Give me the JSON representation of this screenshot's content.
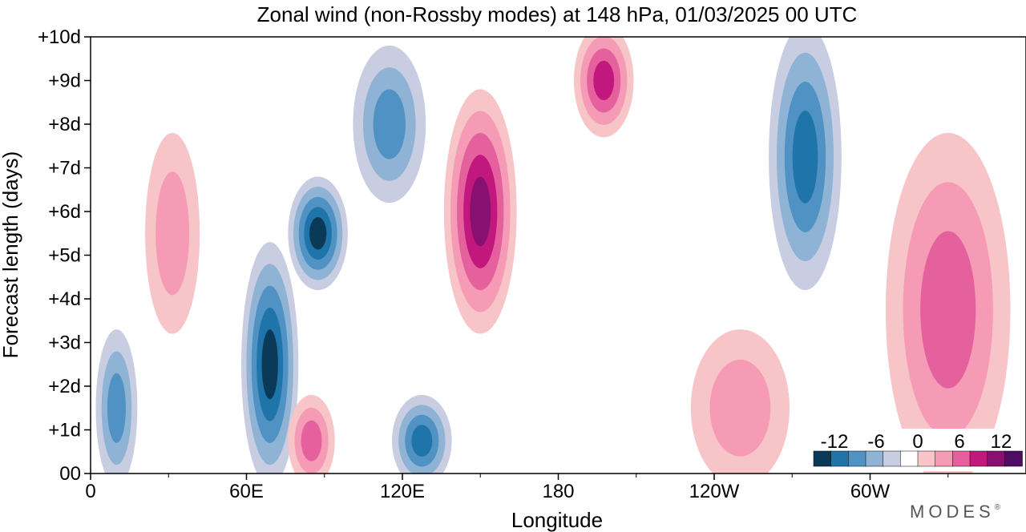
{
  "chart_data": {
    "type": "heatmap",
    "title": "Zonal wind (non-Rossby modes) at 148 hPa,  01/03/2025  00 UTC",
    "xlabel": "Longitude",
    "ylabel": "Forecast length (days)",
    "x_range_deg_east": [
      0,
      360
    ],
    "y_range_days": [
      0,
      10
    ],
    "x_ticks": [
      {
        "label": "0",
        "lon": 0
      },
      {
        "label": "60E",
        "lon": 60
      },
      {
        "label": "120E",
        "lon": 120
      },
      {
        "label": "180",
        "lon": 180
      },
      {
        "label": "120W",
        "lon": 240
      },
      {
        "label": "60W",
        "lon": 300
      }
    ],
    "y_ticks": [
      {
        "label": "00",
        "day": 0
      },
      {
        "label": "+1d",
        "day": 1
      },
      {
        "label": "+2d",
        "day": 2
      },
      {
        "label": "+3d",
        "day": 3
      },
      {
        "label": "+4d",
        "day": 4
      },
      {
        "label": "+5d",
        "day": 5
      },
      {
        "label": "+6d",
        "day": 6
      },
      {
        "label": "+7d",
        "day": 7
      },
      {
        "label": "+8d",
        "day": 8
      },
      {
        "label": "+9d",
        "day": 9
      },
      {
        "label": "+10d",
        "day": 10
      }
    ],
    "colorbar": {
      "labels": [
        "-12",
        "-6",
        "0",
        "6",
        "12"
      ],
      "label_values": [
        -12,
        -6,
        0,
        6,
        12
      ],
      "levels": [
        -15,
        -12,
        -9,
        -6,
        -3,
        0,
        3,
        6,
        9,
        12,
        15
      ],
      "colors": [
        "#0b3a58",
        "#1f75aa",
        "#4f92c3",
        "#8fb3d4",
        "#c8cde2",
        "#ffffff",
        "#f7c5c8",
        "#f59bb5",
        "#e5619d",
        "#c2187d",
        "#871071",
        "#4e0c63"
      ],
      "value_range": [
        -15,
        15
      ]
    },
    "features": [
      {
        "sign": "negative",
        "lon": [
          6,
          14
        ],
        "day": [
          0,
          3
        ],
        "peak": -9
      },
      {
        "sign": "negative",
        "lon": [
          62,
          76
        ],
        "day": [
          0,
          5
        ],
        "peak": -15
      },
      {
        "sign": "negative",
        "lon": [
          80,
          95
        ],
        "day": [
          4.5,
          6.5
        ],
        "peak": -15
      },
      {
        "sign": "negative",
        "lon": [
          105,
          125
        ],
        "day": [
          6.5,
          9.5
        ],
        "peak": -9
      },
      {
        "sign": "negative",
        "lon": [
          120,
          135
        ],
        "day": [
          0,
          1.5
        ],
        "peak": -12
      },
      {
        "sign": "negative",
        "lon": [
          265,
          285
        ],
        "day": [
          4.5,
          10
        ],
        "peak": -12
      },
      {
        "sign": "positive",
        "lon": [
          140,
          160
        ],
        "day": [
          3.5,
          8.5
        ],
        "peak": 15
      },
      {
        "sign": "positive",
        "lon": [
          190,
          205
        ],
        "day": [
          8,
          10
        ],
        "peak": 12
      },
      {
        "sign": "positive",
        "lon": [
          80,
          90
        ],
        "day": [
          0,
          1.5
        ],
        "peak": 9
      },
      {
        "sign": "positive",
        "lon": [
          25,
          38
        ],
        "day": [
          3.5,
          7.5
        ],
        "peak": 6
      },
      {
        "sign": "positive",
        "lon": [
          310,
          350
        ],
        "day": [
          0,
          7.5
        ],
        "peak": 9
      },
      {
        "sign": "positive",
        "lon": [
          235,
          265
        ],
        "day": [
          0,
          3
        ],
        "peak": 6
      }
    ]
  },
  "brand": {
    "text": "MODES",
    "mark": "®"
  }
}
